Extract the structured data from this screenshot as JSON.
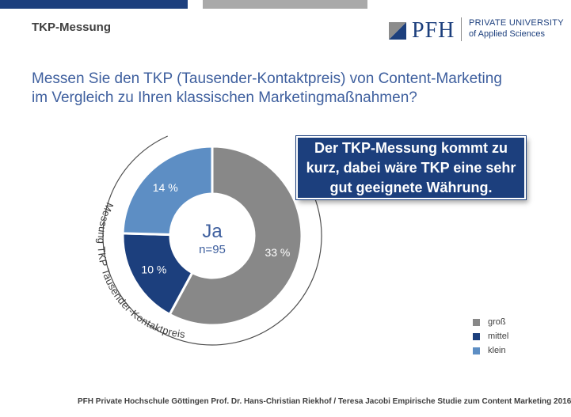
{
  "header": {
    "section_title": "TKP-Messung",
    "logo": {
      "text": "PFH",
      "line1": "PRIVATE UNIVERSITY",
      "line2": "of Applied Sciences",
      "brand_color": "#1c3f7d"
    }
  },
  "question": {
    "line1": "Messen Sie den TKP (Tausender-Kontaktpreis) von Content-Marketing",
    "line2": "im Vergleich zu Ihren klassischen Marketingmaßnahmen?"
  },
  "chart_data": {
    "type": "pie",
    "center_label": "Ja",
    "center_sublabel": "n=95",
    "bracket_label": "Messung TKP Tausender-Kontaktpreis",
    "categories": [
      "groß",
      "mittel",
      "klein"
    ],
    "values": [
      33,
      10,
      14
    ],
    "labels": [
      "33 %",
      "10 %",
      "14 %"
    ],
    "colors": [
      "#888888",
      "#1c3f7d",
      "#5d8ec4"
    ],
    "legend_position": "bottom-right"
  },
  "callout": {
    "text": "Der TKP-Messung kommt zu kurz, dabei wäre TKP eine sehr gut geeignete Währung."
  },
  "footer": {
    "text": "PFH Private Hochschule Göttingen Prof. Dr. Hans-Christian Riekhof / Teresa Jacobi Empirische Studie zum Content Marketing  2016"
  }
}
